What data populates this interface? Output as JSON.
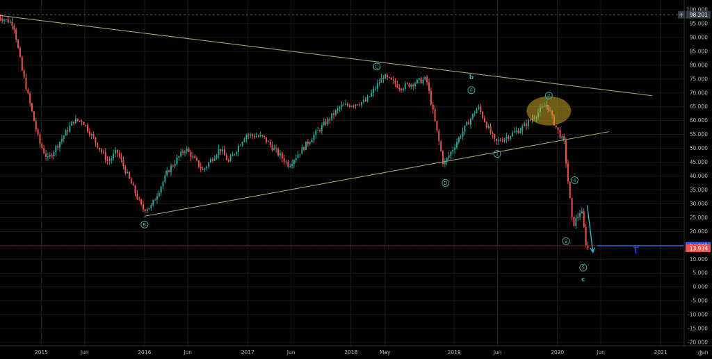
{
  "chart_data": {
    "type": "candlestick",
    "title": "",
    "xlabel": "",
    "ylabel": "",
    "ylim": [
      -20,
      100
    ],
    "x_ticks": [
      "2015",
      "Jun",
      "2016",
      "Jun",
      "2017",
      "Jun",
      "2018",
      "May",
      "2019",
      "Jun",
      "2020",
      "Jun",
      "2021",
      "Jun"
    ],
    "y_ticks": [
      "100.000",
      "95.000",
      "90.000",
      "85.000",
      "80.000",
      "75.000",
      "70.000",
      "65.000",
      "60.000",
      "55.000",
      "50.000",
      "45.000",
      "40.000",
      "35.000",
      "30.000",
      "25.000",
      "20.000",
      "15.000",
      "10.000",
      "5.000",
      "0.000",
      "-5.000",
      "-10.000",
      "-15.000",
      "-20.000"
    ],
    "price_path": [
      {
        "date": "2014-08",
        "price": 98
      },
      {
        "date": "2014-10",
        "price": 95
      },
      {
        "date": "2014-11",
        "price": 78
      },
      {
        "date": "2015-01",
        "price": 52
      },
      {
        "date": "2015-02",
        "price": 46
      },
      {
        "date": "2015-05",
        "price": 60
      },
      {
        "date": "2015-06",
        "price": 60
      },
      {
        "date": "2015-09",
        "price": 45
      },
      {
        "date": "2015-10",
        "price": 49
      },
      {
        "date": "2016-01",
        "price": 28
      },
      {
        "date": "2016-02",
        "price": 29
      },
      {
        "date": "2016-04",
        "price": 42
      },
      {
        "date": "2016-06",
        "price": 50
      },
      {
        "date": "2016-08",
        "price": 42
      },
      {
        "date": "2016-10",
        "price": 50
      },
      {
        "date": "2016-11",
        "price": 45
      },
      {
        "date": "2017-01",
        "price": 55
      },
      {
        "date": "2017-03",
        "price": 54
      },
      {
        "date": "2017-06",
        "price": 44
      },
      {
        "date": "2017-09",
        "price": 55
      },
      {
        "date": "2017-12",
        "price": 65
      },
      {
        "date": "2018-03",
        "price": 67
      },
      {
        "date": "2018-05",
        "price": 76
      },
      {
        "date": "2018-07",
        "price": 72
      },
      {
        "date": "2018-10",
        "price": 75
      },
      {
        "date": "2018-12",
        "price": 44
      },
      {
        "date": "2019-02",
        "price": 55
      },
      {
        "date": "2019-04",
        "price": 65
      },
      {
        "date": "2019-06",
        "price": 52
      },
      {
        "date": "2019-09",
        "price": 57
      },
      {
        "date": "2019-12",
        "price": 66
      },
      {
        "date": "2020-01",
        "price": 58
      },
      {
        "date": "2020-02",
        "price": 52
      },
      {
        "date": "2020-03",
        "price": 22
      },
      {
        "date": "2020-04",
        "price": 28
      },
      {
        "date": "2020-04-20",
        "price": 13.9
      }
    ],
    "trendlines": [
      {
        "from": {
          "date": "2014-08",
          "price": 98
        },
        "to": {
          "date": "2020-12",
          "price": 69
        }
      },
      {
        "from": {
          "date": "2016-01",
          "price": 25.5
        },
        "to": {
          "date": "2020-07",
          "price": 56
        }
      }
    ],
    "horizontal_lines": [
      {
        "price": 98.201,
        "style": "dashed"
      },
      {
        "price": 14.835
      },
      {
        "price": 13.934
      }
    ],
    "wave_labels": [
      {
        "label": "C",
        "date": "2018-04",
        "price": 79.5
      },
      {
        "label": "E",
        "date": "2019-03",
        "price": 71
      },
      {
        "label": "D",
        "date": "2018-12",
        "price": 37.5
      },
      {
        "label": "B",
        "date": "2016-01",
        "price": 22.5
      },
      {
        "label": "1",
        "date": "2019-06",
        "price": 48
      },
      {
        "label": "2",
        "date": "2019-12",
        "price": 69
      },
      {
        "label": "3",
        "date": "2020-02",
        "price": 16.5
      },
      {
        "label": "4",
        "date": "2020-03",
        "price": 38.5
      },
      {
        "label": "5",
        "date": "2020-04",
        "price": 7
      }
    ],
    "degree_labels": [
      {
        "label": "b",
        "date": "2019-03",
        "price": 75
      },
      {
        "label": "c",
        "date": "2020-04",
        "price": 2
      }
    ],
    "target_label": "T",
    "price_badges": [
      {
        "price": 98.201,
        "text": "98.201",
        "color": "#363a45"
      },
      {
        "price": 14.835,
        "text": "14.835",
        "color": "#2962ff"
      },
      {
        "price": 13.934,
        "text": "13.934",
        "color": "#ef5350"
      }
    ],
    "colors": {
      "up": "#26a69a",
      "down": "#ef5350",
      "trendline": "#a7a171",
      "wave": "#38a59f",
      "arrow": "#3cb4c0",
      "ellipse": "#c8a525",
      "target": "#2962ff",
      "grid": "#1a1a1a"
    }
  }
}
